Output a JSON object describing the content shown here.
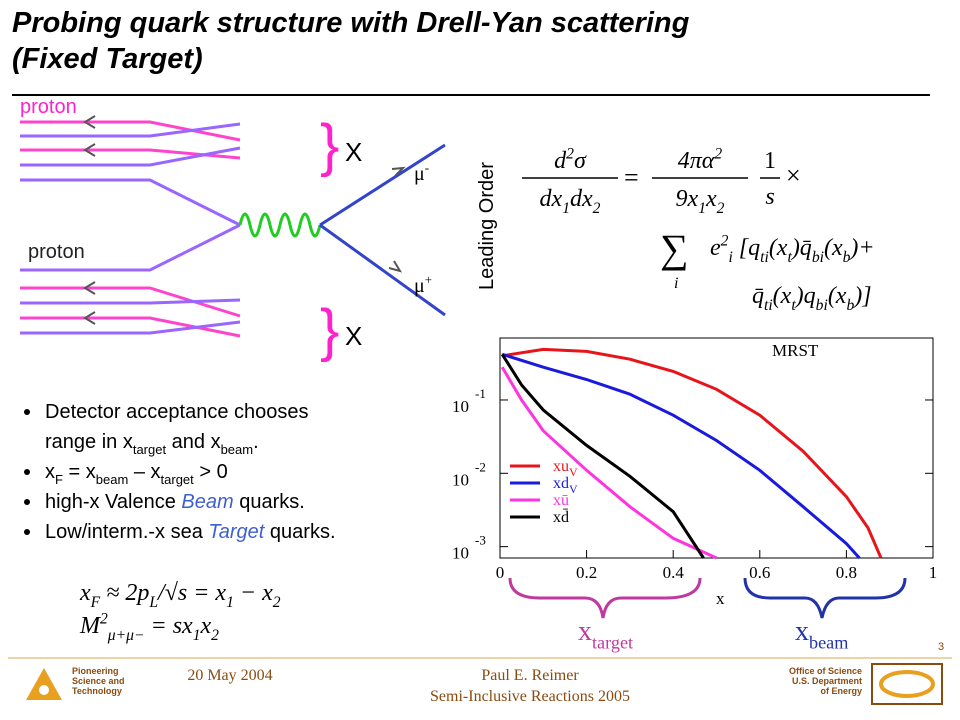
{
  "title": [
    "Probing quark structure with Drell-Yan scattering",
    "(Fixed Target)"
  ],
  "diagram": {
    "proton_top": "proton",
    "proton_bottom": "proton",
    "x_top": "X",
    "x_bottom": "X",
    "mu_minus": [
      {
        "t": "μ",
        "sup": "-"
      }
    ],
    "mu_plus": [
      {
        "t": "μ",
        "sup": "+"
      }
    ]
  },
  "equation": {
    "label": "Leading Order",
    "lhs_num": [
      {
        "t": "d",
        "sup": "2"
      },
      {
        "t": "σ"
      }
    ],
    "lhs_den": [
      {
        "t": "dx",
        "sub": "1"
      },
      {
        "t": "dx",
        "sub": "2"
      }
    ],
    "eq": "=",
    "rhs_num": [
      {
        "t": "4πα",
        "sup": "2"
      }
    ],
    "rhs_den": [
      {
        "t": "9x",
        "sub": "1"
      },
      {
        "t": "x",
        "sub": "2"
      }
    ],
    "s_num": "1",
    "s_den": "s",
    "times": "×",
    "sum": "∑",
    "sum_index": "i",
    "line2": [
      {
        "t": "e",
        "sup": "2",
        "sub": "i"
      },
      {
        "t": " [q",
        "sub": "ti"
      },
      {
        "t": "(x",
        "sub": "t"
      },
      {
        "t": ")q̄",
        "sub": "bi"
      },
      {
        "t": "(x",
        "sub": "b"
      },
      {
        "t": ")+"
      }
    ],
    "line3": [
      {
        "t": "q̄",
        "sub": "ti"
      },
      {
        "t": "(x",
        "sub": "t"
      },
      {
        "t": ")q",
        "sub": "bi"
      },
      {
        "t": "(x",
        "sub": "b"
      },
      {
        "t": ")]"
      }
    ]
  },
  "bullets": [
    [
      [
        {
          "t": "Detector acceptance chooses"
        }
      ],
      [
        {
          "t": "range in x",
          "sub": "target"
        },
        {
          "t": " and x",
          "sub": "beam"
        },
        {
          "t": "."
        }
      ]
    ],
    [
      [
        {
          "t": "x",
          "sub": "F"
        },
        {
          "t": " = x",
          "sub": "beam"
        },
        {
          "t": " – x",
          "sub": "target"
        },
        {
          "t": " > 0"
        }
      ]
    ],
    [
      [
        {
          "t": "high-x Valence "
        },
        {
          "t": "Beam",
          "italic": true,
          "color": "#3f5fd0"
        },
        {
          "t": " quarks."
        }
      ]
    ],
    [
      [
        {
          "t": "Low/interm.-x sea "
        },
        {
          "t": "Target",
          "italic": true,
          "color": "#3f5fd0"
        },
        {
          "t": " quarks."
        }
      ]
    ]
  ],
  "formulas": [
    [
      {
        "t": "x",
        "sub": "F"
      },
      {
        "t": " ≈ 2p",
        "sub": "L"
      },
      {
        "t": "/√s = x",
        "sub": "1"
      },
      {
        "t": " − x",
        "sub": "2"
      }
    ],
    [
      {
        "t": "M",
        "sup": "2",
        "sub": "μ+μ−"
      },
      {
        "t": " = sx",
        "sub": "1"
      },
      {
        "t": "x",
        "sub": "2"
      }
    ]
  ],
  "x_target": [
    {
      "t": "x",
      "sub": "target"
    }
  ],
  "x_beam": [
    {
      "t": "x",
      "sub": "beam"
    }
  ],
  "chart_data": {
    "type": "line",
    "annotation": "MRST",
    "x_label": "x",
    "xlim": [
      0,
      1
    ],
    "xticks": [
      0,
      0.2,
      0.4,
      0.6,
      0.8,
      1
    ],
    "ylim": [
      0.0007,
      0.7
    ],
    "log_y": true,
    "yticks": [
      {
        "value": 0.1,
        "label": "10",
        "exponent": "-1"
      },
      {
        "value": 0.01,
        "label": "10",
        "exponent": "-2"
      },
      {
        "value": 0.001,
        "label": "10",
        "exponent": "-3"
      }
    ],
    "series": [
      {
        "name": "xu",
        "name_sub": "V",
        "color": "#e8141b",
        "x": [
          0.005,
          0.1,
          0.2,
          0.3,
          0.4,
          0.5,
          0.6,
          0.7,
          0.8,
          0.85,
          0.88
        ],
        "values": [
          0.4,
          0.49,
          0.46,
          0.36,
          0.245,
          0.14,
          0.062,
          0.02,
          0.0048,
          0.0018,
          0.0007
        ]
      },
      {
        "name": "xd",
        "name_sub": "V",
        "color": "#1a1adf",
        "x": [
          0.005,
          0.1,
          0.2,
          0.3,
          0.4,
          0.5,
          0.6,
          0.7,
          0.8,
          0.83
        ],
        "values": [
          0.42,
          0.28,
          0.19,
          0.12,
          0.062,
          0.028,
          0.011,
          0.0035,
          0.0011,
          0.0007
        ]
      },
      {
        "name": "xū",
        "color": "#ff33e0",
        "x": [
          0.005,
          0.05,
          0.1,
          0.2,
          0.3,
          0.4,
          0.5
        ],
        "values": [
          0.28,
          0.1,
          0.038,
          0.011,
          0.0035,
          0.0013,
          0.0007
        ]
      },
      {
        "name": "xd̄",
        "color": "#000000",
        "x": [
          0.005,
          0.05,
          0.1,
          0.2,
          0.3,
          0.4,
          0.47
        ],
        "values": [
          0.42,
          0.16,
          0.073,
          0.024,
          0.0091,
          0.003,
          0.0007
        ]
      }
    ]
  },
  "page_number": "3",
  "footer": {
    "lab": [
      "Pioneering",
      "Science and",
      "Technology"
    ],
    "date": "20 May 2004",
    "author": "Paul E. Reimer",
    "event": "Semi-Inclusive Reactions 2005",
    "doe": [
      "Office of Science",
      "U.S. Department",
      "of Energy"
    ]
  }
}
